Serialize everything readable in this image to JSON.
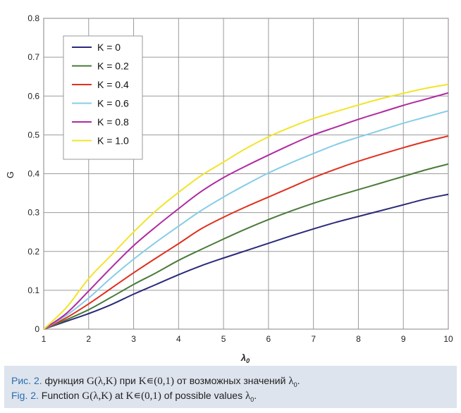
{
  "chart_data": {
    "type": "line",
    "xlabel": "λ",
    "xlabel_subscript": "0",
    "ylabel": "G",
    "xlim": [
      1,
      10
    ],
    "ylim": [
      0,
      0.8
    ],
    "x_ticks": [
      "1",
      "2",
      "3",
      "4",
      "5",
      "6",
      "7",
      "8",
      "9",
      "10"
    ],
    "y_ticks": [
      "0",
      "0.1",
      "0.2",
      "0.3",
      "0.4",
      "0.5",
      "0.6",
      "0.7",
      "0.8"
    ],
    "grid": true,
    "legend_position": "top-left",
    "x": [
      1,
      1.5,
      2,
      2.5,
      3,
      3.5,
      4,
      4.5,
      5,
      5.5,
      6,
      6.5,
      7,
      7.5,
      8,
      8.5,
      9,
      9.5,
      10
    ],
    "series": [
      {
        "name": "K = 0",
        "color": "#2a2a7a",
        "values": [
          0,
          0.02,
          0.04,
          0.063,
          0.09,
          0.115,
          0.14,
          0.163,
          0.183,
          0.202,
          0.221,
          0.24,
          0.258,
          0.275,
          0.29,
          0.305,
          0.32,
          0.335,
          0.347
        ]
      },
      {
        "name": "K = 0.2",
        "color": "#4a7a3a",
        "values": [
          0,
          0.024,
          0.05,
          0.082,
          0.115,
          0.145,
          0.177,
          0.205,
          0.232,
          0.258,
          0.282,
          0.304,
          0.324,
          0.342,
          0.359,
          0.376,
          0.393,
          0.41,
          0.425
        ]
      },
      {
        "name": "K = 0.4",
        "color": "#e0301e",
        "values": [
          0,
          0.029,
          0.065,
          0.105,
          0.145,
          0.183,
          0.22,
          0.258,
          0.288,
          0.315,
          0.34,
          0.365,
          0.39,
          0.412,
          0.432,
          0.45,
          0.467,
          0.483,
          0.497
        ]
      },
      {
        "name": "K = 0.6",
        "color": "#87cde6",
        "values": [
          0,
          0.035,
          0.08,
          0.132,
          0.18,
          0.224,
          0.265,
          0.305,
          0.34,
          0.372,
          0.402,
          0.428,
          0.452,
          0.475,
          0.494,
          0.512,
          0.53,
          0.546,
          0.562
        ]
      },
      {
        "name": "K = 0.8",
        "color": "#b02aa0",
        "values": [
          0,
          0.04,
          0.098,
          0.158,
          0.215,
          0.264,
          0.31,
          0.354,
          0.39,
          0.42,
          0.448,
          0.475,
          0.5,
          0.52,
          0.54,
          0.558,
          0.576,
          0.592,
          0.608
        ]
      },
      {
        "name": "K = 1.0",
        "color": "#f2e42a",
        "values": [
          0,
          0.055,
          0.13,
          0.19,
          0.25,
          0.305,
          0.352,
          0.395,
          0.43,
          0.465,
          0.495,
          0.52,
          0.542,
          0.56,
          0.577,
          0.593,
          0.607,
          0.62,
          0.63
        ]
      }
    ]
  },
  "caption": {
    "ru_prefix": "Рис. 2.",
    "ru_text_1": " функция ",
    "ru_formula": "G(λ,K)",
    "ru_text_2": " при ",
    "ru_set": "K∊(0,1)",
    "ru_text_3": " от возможных значений ",
    "ru_var": "λ",
    "ru_var_sub": "0",
    "ru_end": ".",
    "en_prefix": "Fig. 2.",
    "en_text_1": " Function ",
    "en_formula": "G(λ,K)",
    "en_text_2": " at ",
    "en_set": "K∊(0,1)",
    "en_text_3": " of possible values ",
    "en_var": "λ",
    "en_var_sub": "0",
    "en_end": "."
  }
}
